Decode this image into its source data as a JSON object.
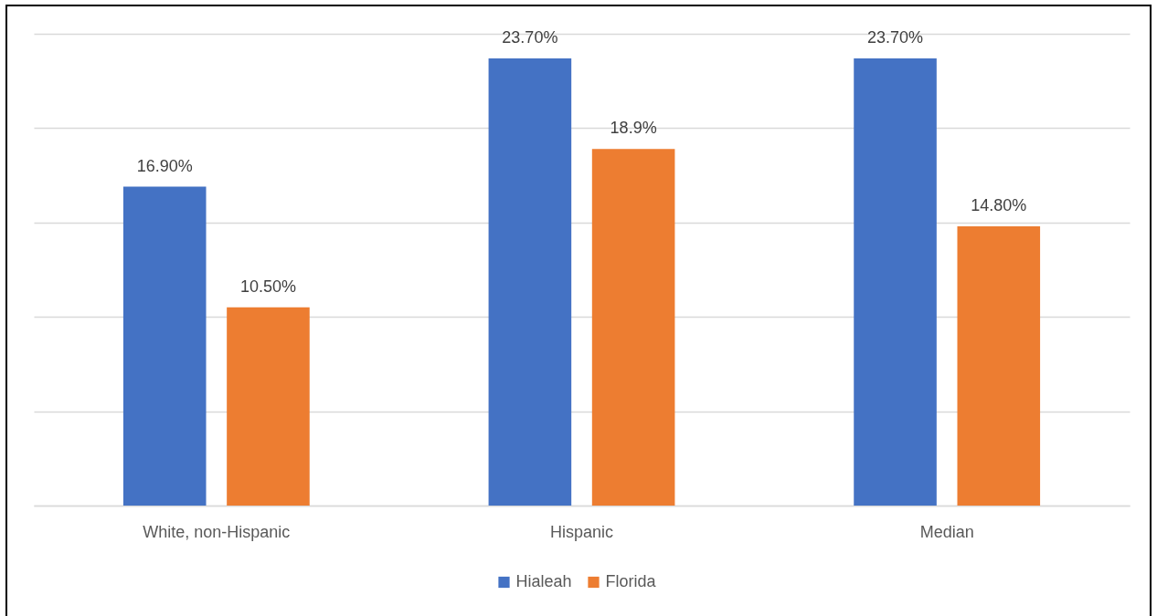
{
  "chart_data": {
    "type": "bar",
    "categories": [
      "White, non-Hispanic",
      "Hispanic",
      "Median"
    ],
    "series": [
      {
        "name": "Hialeah",
        "color": "#4472c4",
        "values": [
          16.9,
          23.7,
          23.7
        ],
        "value_labels": [
          "16.90%",
          "23.70%",
          "23.70%"
        ]
      },
      {
        "name": "Florida",
        "color": "#ed7d31",
        "values": [
          10.5,
          18.9,
          14.8
        ],
        "value_labels": [
          "10.50%",
          "18.9%",
          "14.80%"
        ]
      }
    ],
    "grid": "y",
    "legend": "bottom",
    "tick_labels": "x"
  }
}
